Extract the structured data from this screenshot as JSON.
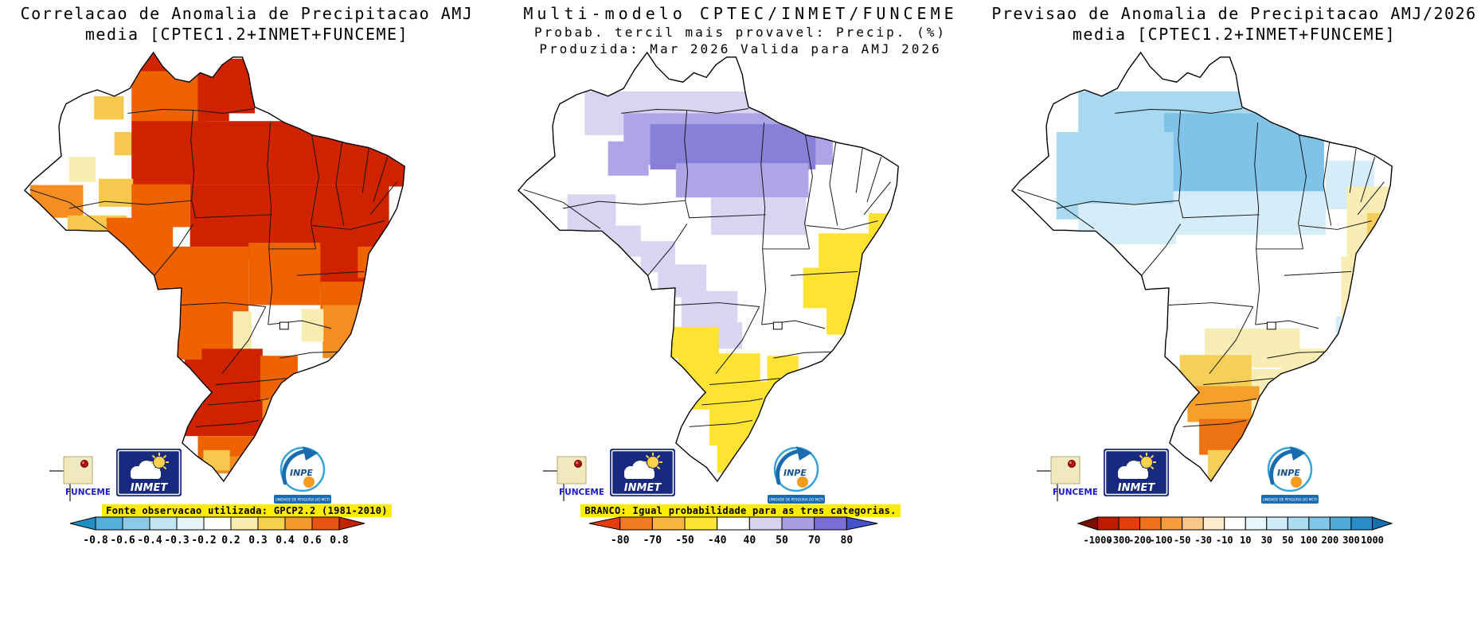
{
  "page": {
    "background": "#ffffff"
  },
  "logos": {
    "funceme_label": "FUNCEME",
    "inmet_label": "INMET",
    "inpe_label": "INPE",
    "inpe_sub": "UNIDADE DE PESQUISA DO MCTI"
  },
  "panels": [
    {
      "id": "correlation",
      "title_lines": [
        "Correlacao de Anomalia de Precipitacao AMJ",
        "media [CPTEC1.2+INMET+FUNCEME]"
      ],
      "caption": "Fonte observacao utilizada: GPCP2.2 (1981-2010)",
      "colorbar": {
        "ticks": [
          "-0.8",
          "-0.6",
          "-0.4",
          "-0.3",
          "-0.2",
          "0.2",
          "0.3",
          "0.4",
          "0.6",
          "0.8"
        ],
        "colors": [
          "#1f8fc4",
          "#54aeda",
          "#8ccbe8",
          "#c2e5f3",
          "#e6f5fb",
          "#ffffff",
          "#f8ecae",
          "#f6d14b",
          "#f49a2c",
          "#e75310",
          "#c42300"
        ]
      },
      "pattern": {
        "base": "#ffffff",
        "cells": [
          [
            150,
            8,
            60,
            45,
            "#cf2300"
          ],
          [
            140,
            30,
            95,
            65,
            "#ee6300"
          ],
          [
            92,
            62,
            38,
            30,
            "#f6c84d"
          ],
          [
            118,
            108,
            40,
            30,
            "#f6c84d"
          ],
          [
            225,
            22,
            40,
            72,
            "#cf2300"
          ],
          [
            252,
            14,
            46,
            70,
            "#cf2300"
          ],
          [
            140,
            94,
            330,
            82,
            "#cf2300"
          ],
          [
            215,
            176,
            255,
            95,
            "#cf2300"
          ],
          [
            380,
            268,
            75,
            40,
            "#cf2300"
          ],
          [
            440,
            128,
            55,
            50,
            "#cf2300"
          ],
          [
            60,
            140,
            34,
            32,
            "#f8edb0"
          ],
          [
            98,
            168,
            44,
            36,
            "#f6c84d"
          ],
          [
            10,
            176,
            68,
            42,
            "#f58d20"
          ],
          [
            58,
            215,
            76,
            50,
            "#f6c84d"
          ],
          [
            108,
            218,
            85,
            62,
            "#ee6300"
          ],
          [
            140,
            175,
            75,
            55,
            "#ee6300"
          ],
          [
            150,
            255,
            140,
            115,
            "#ee6300"
          ],
          [
            290,
            250,
            92,
            80,
            "#ee6300"
          ],
          [
            196,
            308,
            85,
            85,
            "#ee6300"
          ],
          [
            382,
            300,
            58,
            45,
            "#ee6300"
          ],
          [
            385,
            330,
            52,
            68,
            "#f58d20"
          ],
          [
            430,
            255,
            35,
            40,
            "#ee6300"
          ],
          [
            270,
            338,
            24,
            55,
            "#f8edb0"
          ],
          [
            292,
            418,
            75,
            22,
            "#f8edb0"
          ],
          [
            358,
            335,
            28,
            42,
            "#f8edb0"
          ],
          [
            208,
            386,
            100,
            112,
            "#cf2300"
          ],
          [
            178,
            352,
            52,
            48,
            "#ee6300"
          ],
          [
            305,
            395,
            48,
            58,
            "#ee6300"
          ],
          [
            308,
            450,
            40,
            45,
            "#f58d20"
          ],
          [
            225,
            498,
            85,
            30,
            "#ee6300"
          ],
          [
            248,
            524,
            62,
            22,
            "#f58d20"
          ],
          [
            268,
            543,
            40,
            14,
            "#f8edb0"
          ],
          [
            232,
            516,
            34,
            26,
            "#f6c84d"
          ]
        ]
      }
    },
    {
      "id": "probability",
      "title_lines": [
        "Multi-modelo CPTEC/INMET/FUNCEME",
        "Probab. tercil mais provavel: Precip. (%)",
        "Produzida: Mar 2026  Valida para AMJ 2026"
      ],
      "caption": "BRANCO: Igual probabilidade para as tres categorias.",
      "colorbar": {
        "ticks": [
          "-80",
          "-70",
          "-50",
          "-40",
          "40",
          "50",
          "70",
          "80"
        ],
        "colors": [
          "#e23b0e",
          "#f07d1f",
          "#f7b43e",
          "#ffe431",
          "#ffffff",
          "#d8d2ef",
          "#a89fe2",
          "#7a6ed6",
          "#4353cc"
        ]
      },
      "pattern": {
        "base": "#ffffff",
        "cells": [
          [
            88,
            56,
            352,
            56,
            "#d8d4f1"
          ],
          [
            138,
            84,
            268,
            66,
            "#ada5e6"
          ],
          [
            172,
            98,
            212,
            58,
            "#897ed8"
          ],
          [
            205,
            148,
            170,
            44,
            "#ada5e6"
          ],
          [
            118,
            120,
            52,
            44,
            "#ada5e6"
          ],
          [
            66,
            188,
            62,
            48,
            "#d8d4f1"
          ],
          [
            108,
            228,
            52,
            40,
            "#d8d4f1"
          ],
          [
            250,
            192,
            122,
            48,
            "#d8d4f1"
          ],
          [
            160,
            248,
            44,
            40,
            "#d8d4f1"
          ],
          [
            182,
            278,
            62,
            42,
            "#d8d4f1"
          ],
          [
            212,
            312,
            72,
            46,
            "#d8d4f1"
          ],
          [
            248,
            352,
            42,
            34,
            "#d8d4f1"
          ],
          [
            452,
            212,
            42,
            28,
            "#ffe333"
          ],
          [
            388,
            238,
            82,
            52,
            "#ffe333"
          ],
          [
            368,
            282,
            72,
            52,
            "#ffe333"
          ],
          [
            398,
            328,
            52,
            40,
            "#ffe333"
          ],
          [
            198,
            358,
            62,
            40,
            "#ffe333"
          ],
          [
            208,
            392,
            105,
            72,
            "#ffe333"
          ],
          [
            288,
            428,
            52,
            42,
            "#ffe333"
          ],
          [
            248,
            458,
            82,
            52,
            "#ffe333"
          ],
          [
            258,
            505,
            62,
            40,
            "#ffe333"
          ],
          [
            322,
            395,
            40,
            40,
            "#ffe333"
          ]
        ]
      }
    },
    {
      "id": "anomaly",
      "title_lines": [
        "Previsao de Anomalia de Precipitacao AMJ/2026",
        "media [CPTEC1.2+INMET+FUNCEME]"
      ],
      "caption": "",
      "colorbar": {
        "ticks": [
          "-1000",
          "-300",
          "-200",
          "-100",
          "-50",
          "-30",
          "-10",
          "10",
          "30",
          "50",
          "100",
          "200",
          "300",
          "1000"
        ],
        "colors": [
          "#7a0d00",
          "#bf1b00",
          "#e23e0c",
          "#f0711c",
          "#f59d3c",
          "#f9c88a",
          "#fdeccb",
          "#ffffff",
          "#e8f6fb",
          "#cfecf7",
          "#abdcf0",
          "#7fc6e8",
          "#51aadc",
          "#2b8dc8",
          "#1a6fae"
        ]
      },
      "pattern": {
        "base": "#ffffff",
        "cells": [
          [
            88,
            56,
            352,
            64,
            "#a8d9f0"
          ],
          [
            198,
            84,
            205,
            100,
            "#7fc3e8"
          ],
          [
            60,
            108,
            150,
            112,
            "#a8d9f0"
          ],
          [
            88,
            200,
            125,
            52,
            "#d5edf8"
          ],
          [
            210,
            184,
            195,
            56,
            "#d5edf8"
          ],
          [
            405,
            145,
            62,
            62,
            "#d5edf8"
          ],
          [
            432,
            178,
            62,
            92,
            "#f8edb5"
          ],
          [
            425,
            268,
            72,
            112,
            "#f8edb5"
          ],
          [
            458,
            212,
            36,
            40,
            "#f5cf5a"
          ],
          [
            418,
            345,
            32,
            42,
            "#d5edf8"
          ],
          [
            250,
            360,
            122,
            50,
            "#f8edb5"
          ],
          [
            348,
            386,
            75,
            72,
            "#f8edb5"
          ],
          [
            300,
            412,
            62,
            48,
            "#f8edb5"
          ],
          [
            218,
            394,
            92,
            48,
            "#f5cf5a"
          ],
          [
            228,
            434,
            92,
            46,
            "#f4a02b"
          ],
          [
            243,
            476,
            68,
            46,
            "#ed7211"
          ],
          [
            254,
            516,
            72,
            38,
            "#f5cf5a"
          ],
          [
            310,
            452,
            52,
            50,
            "#f8edb5"
          ],
          [
            318,
            502,
            42,
            38,
            "#f8edb5"
          ]
        ]
      }
    }
  ],
  "chart_data": [
    {
      "type": "heatmap",
      "title": "Correlacao de Anomalia de Precipitacao AMJ media [CPTEC1.2+INMET+FUNCEME]",
      "region": "Brazil",
      "colorbar_ticks": [
        -0.8,
        -0.6,
        -0.4,
        -0.3,
        -0.2,
        0.2,
        0.3,
        0.4,
        0.6,
        0.8
      ],
      "legend_note": "Fonte observacao utilizada: GPCP2.2 (1981-2010)",
      "summary": "Correlation 0.4 to >0.8 (orange to dark red) over most of Brazil; strongest (>0.6) across the north and northeast; near-zero (white) patches in western Amazonas, central Goias/Minas and parts of the far south; scattered 0.2-0.4 (yellow) cells in the west and south."
    },
    {
      "type": "heatmap",
      "title": "Multi-modelo CPTEC/INMET/FUNCEME - Probab. tercil mais provavel: Precip. (%)",
      "produced": "Mar 2026",
      "valid": "AMJ 2026",
      "colorbar_ticks": [
        -80,
        -70,
        -50,
        -40,
        40,
        50,
        70,
        80
      ],
      "legend_note": "BRANCO: Igual probabilidade para as tres categorias.",
      "summary": "Above-normal tercile probabilities 40-70% (lavender/purple) over the Amazon and far north; below-normal tercile probabilities 40-50% (yellow) over eastern Bahia/Minas and the south (Sao Paulo to Rio Grande do Sul); white elsewhere meaning equal probability for the three categories."
    },
    {
      "type": "heatmap",
      "title": "Previsao de Anomalia de Precipitacao AMJ/2026 media [CPTEC1.2+INMET+FUNCEME]",
      "colorbar_ticks": [
        -1000,
        -300,
        -200,
        -100,
        -50,
        -30,
        -10,
        10,
        30,
        50,
        100,
        200,
        300,
        1000
      ],
      "summary": "Positive precipitation anomalies +10 to +100 (light to medium blue) across the north/Amazon; weak negative anomalies -10 to -50 (pale yellow) along the east coast and central-south; -50 to -200 (orange/dark orange) over the far south (Parana/Santa Catarina/Rio Grande do Sul); near zero (white) over the center."
    }
  ]
}
